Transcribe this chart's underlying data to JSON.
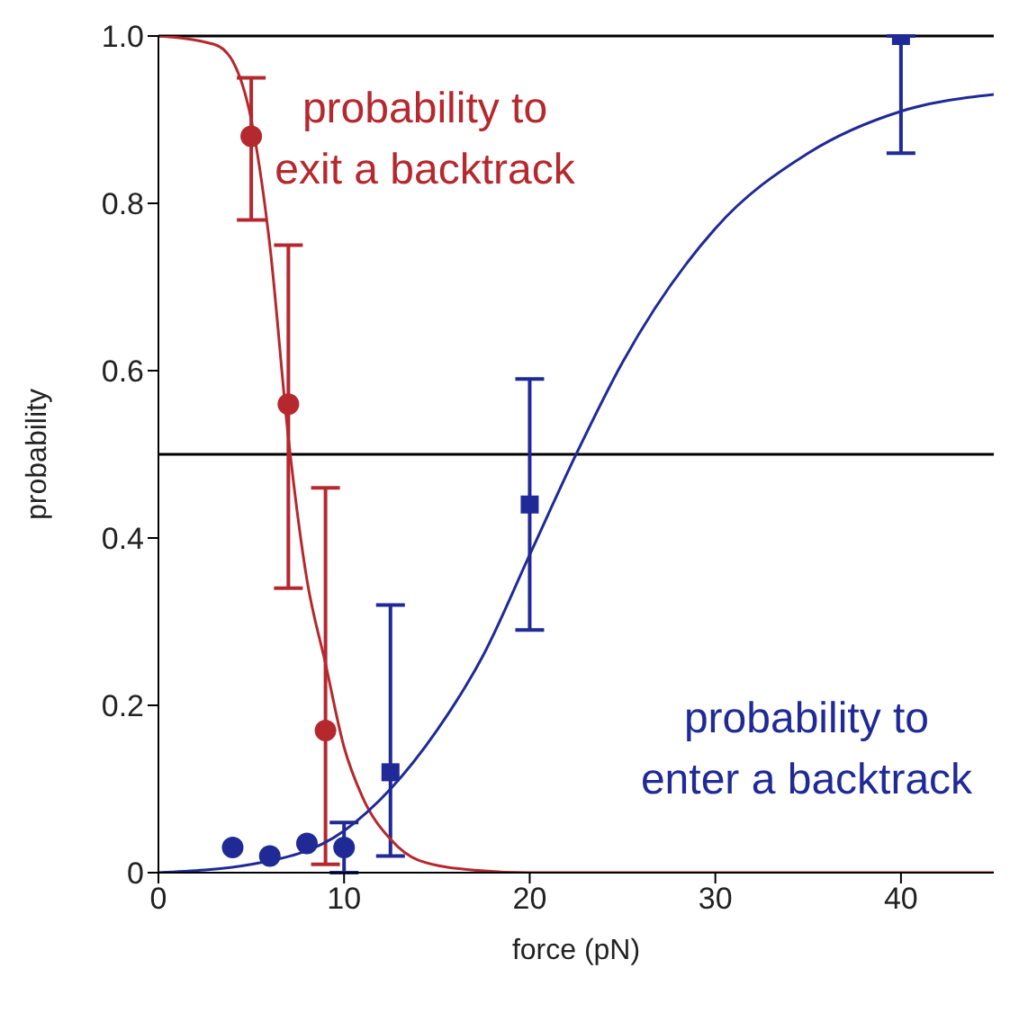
{
  "chart_data": {
    "type": "scatter",
    "xlabel": "force (pN)",
    "ylabel": "probability",
    "xlim": [
      0,
      45
    ],
    "xticks": [
      0,
      10,
      20,
      30,
      40
    ],
    "ylim": [
      0,
      1
    ],
    "yticks": [
      0,
      {
        "value": 0.2,
        "label": "0.2"
      },
      {
        "value": 0.4,
        "label": "0.4"
      },
      {
        "value": 0.6,
        "label": "0.6"
      },
      {
        "value": 0.8,
        "label": "0.8"
      },
      {
        "value": 1,
        "label": "1.0"
      }
    ],
    "grid": false,
    "legend": false,
    "annotations": [
      "probability to\nexit a backtrack",
      "probability to\nenter a backtrack"
    ],
    "ref_lines": [
      {
        "axis": "y",
        "value": 0.5,
        "color": "#000000"
      }
    ],
    "series": [
      {
        "color": "#b5282e",
        "marker": "circle",
        "x": [
          5,
          7,
          9
        ],
        "values": [
          0.88,
          0.56,
          0.17
        ],
        "errors": [
          [
            0.78,
            0.95
          ],
          [
            0.34,
            0.75
          ],
          [
            0.01,
            0.46
          ]
        ]
      },
      {
        "color": "#1f2a96",
        "marker": "circle",
        "x": [
          4,
          6,
          8,
          10
        ],
        "values": [
          0.03,
          0.02,
          0.035,
          0.03
        ],
        "errors": [
          null,
          null,
          null,
          [
            0,
            0.06
          ]
        ]
      },
      {
        "color": "#1f2a96",
        "marker": "square",
        "x": [
          12.5,
          20,
          40
        ],
        "values": [
          0.12,
          0.44,
          1
        ],
        "errors": [
          [
            0.02,
            0.32
          ],
          [
            0.29,
            0.59
          ],
          [
            0.86,
            1
          ]
        ]
      },
      {
        "type": "line",
        "color": "#b5282e",
        "marker": "none",
        "x": [
          0,
          3,
          4,
          5,
          6,
          7,
          8,
          9,
          10,
          11,
          12.5,
          14,
          17,
          20,
          45
        ],
        "values": [
          1,
          0.99,
          0.97,
          0.9,
          0.75,
          0.52,
          0.35,
          0.25,
          0.15,
          0.09,
          0.04,
          0.015,
          0.003,
          0,
          0
        ]
      },
      {
        "type": "line",
        "color": "#1f2a96",
        "marker": "none",
        "x": [
          0,
          5,
          10,
          12.5,
          15,
          17.5,
          20,
          22.5,
          25,
          30,
          35,
          40,
          45
        ],
        "values": [
          0,
          0.01,
          0.05,
          0.1,
          0.17,
          0.26,
          0.38,
          0.5,
          0.61,
          0.77,
          0.86,
          0.91,
          0.93
        ]
      }
    ]
  }
}
